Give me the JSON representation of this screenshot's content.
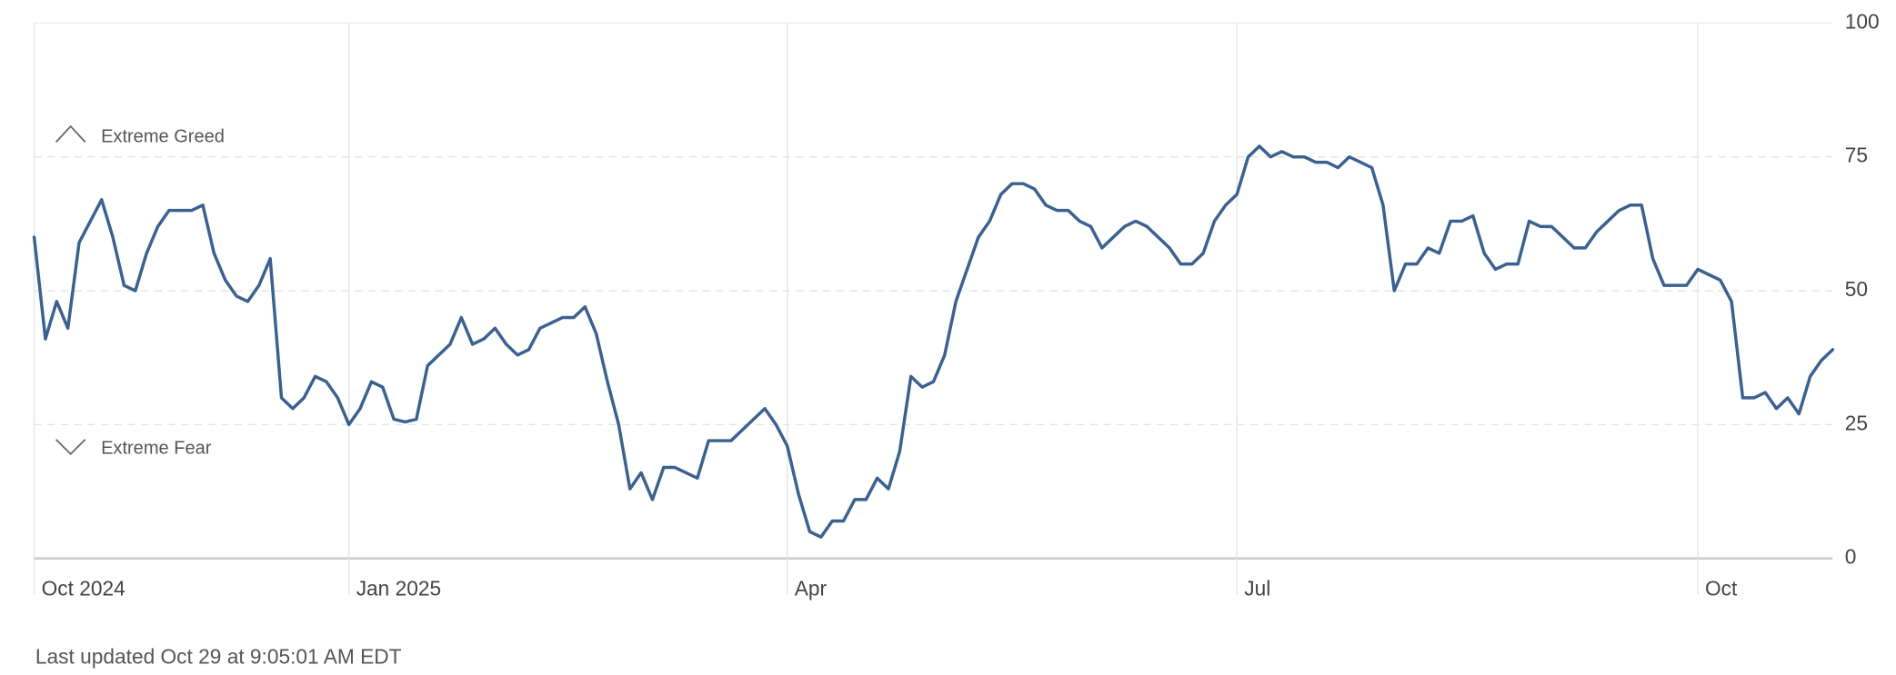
{
  "chart_data": {
    "type": "line",
    "categories": [
      "Oct 2024",
      null,
      null,
      null,
      null,
      null,
      null,
      null,
      null,
      null,
      null,
      null,
      null,
      null,
      null,
      null,
      null,
      null,
      null,
      null,
      null,
      null,
      null,
      null,
      null,
      null,
      null,
      null,
      "Jan 2025",
      null,
      null,
      null,
      null,
      null,
      null,
      null,
      null,
      null,
      null,
      null,
      null,
      null,
      null,
      null,
      null,
      null,
      null,
      null,
      null,
      null,
      null,
      null,
      null,
      null,
      null,
      null,
      null,
      null,
      null,
      null,
      null,
      null,
      null,
      null,
      null,
      null,
      null,
      "Apr",
      null,
      null,
      null,
      null,
      null,
      null,
      null,
      null,
      null,
      null,
      null,
      null,
      null,
      null,
      null,
      null,
      null,
      null,
      null,
      null,
      null,
      null,
      null,
      null,
      null,
      null,
      null,
      null,
      null,
      null,
      null,
      null,
      null,
      null,
      null,
      null,
      null,
      null,
      null,
      "Jul",
      null,
      null,
      null,
      null,
      null,
      null,
      null,
      null,
      null,
      null,
      null,
      null,
      null,
      null,
      null,
      null,
      null,
      null,
      null,
      null,
      null,
      null,
      null,
      null,
      null,
      null,
      null,
      null,
      null,
      null,
      null,
      null,
      null,
      null,
      null,
      null,
      null,
      null,
      null,
      null,
      "Oct",
      null,
      null,
      null,
      null,
      null,
      null,
      null,
      null,
      null,
      null,
      null,
      null
    ],
    "series": [
      {
        "color": "#3b6190",
        "values": [
          60,
          41,
          48,
          43,
          59,
          63,
          67,
          60,
          51,
          50,
          57,
          62,
          65,
          65,
          65,
          66,
          57,
          52,
          49,
          48,
          51,
          56,
          30,
          28,
          30,
          34,
          33,
          30,
          25,
          28,
          33,
          32,
          26,
          25.5,
          26,
          36,
          38,
          40,
          45,
          40,
          41,
          43,
          40,
          38,
          39,
          43,
          44,
          45,
          45,
          47,
          42,
          33,
          25,
          13,
          16,
          11,
          17,
          17,
          16,
          15,
          22,
          22,
          22,
          24,
          26,
          28,
          25,
          21,
          12,
          5,
          4,
          7,
          7,
          11,
          11,
          15,
          13,
          20,
          34,
          32,
          33,
          38,
          48,
          54,
          60,
          63,
          68,
          70,
          70,
          69,
          66,
          65,
          65,
          63,
          62,
          58,
          60,
          62,
          63,
          62,
          60,
          58,
          55,
          55,
          57,
          63,
          66,
          68,
          75,
          77,
          75,
          76,
          75,
          75,
          74,
          74,
          73,
          75,
          74,
          73,
          66,
          50,
          55,
          55,
          58,
          57,
          63,
          63,
          64,
          57,
          54,
          55,
          55,
          63,
          62,
          62,
          60,
          58,
          58,
          61,
          63,
          65,
          66,
          66,
          56,
          51,
          51,
          51,
          54,
          53,
          52,
          48,
          30,
          30,
          31,
          28,
          30,
          27,
          34,
          37,
          39
        ]
      }
    ],
    "ylim": [
      0,
      100
    ],
    "yticks": [
      0,
      25,
      50,
      75,
      100
    ],
    "grid": true,
    "annotations": [
      "Extreme Greed",
      "Extreme Fear"
    ],
    "footer": "Last updated Oct 29 at 9:05:01 AM EDT"
  }
}
